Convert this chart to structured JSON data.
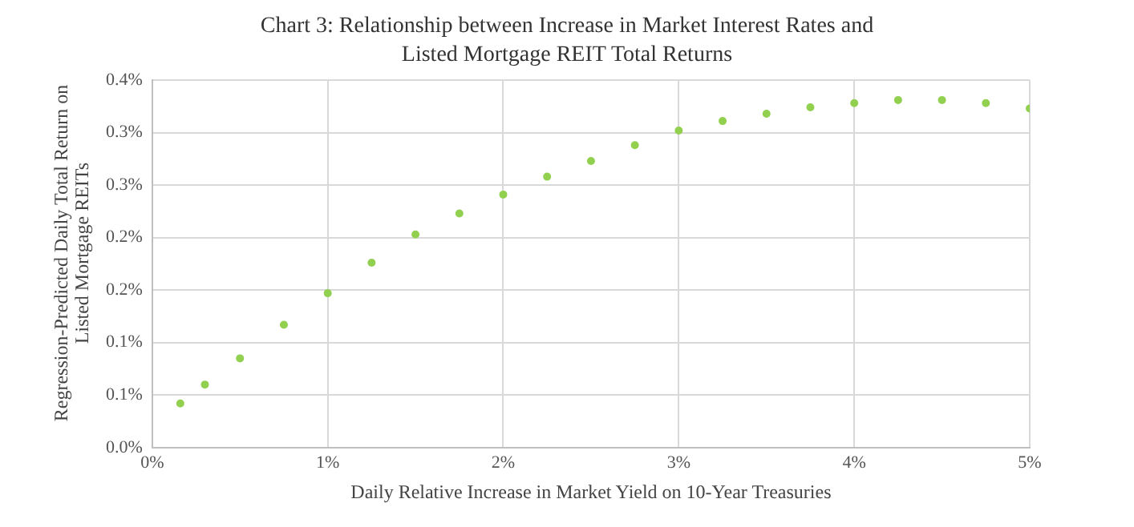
{
  "chart_data": {
    "type": "scatter",
    "title": "Chart 3: Relationship between Increase in Market Interest Rates and Listed Mortgage REIT Total Returns",
    "xlabel": "Daily Relative Increase in Market Yield on 10-Year Treasuries",
    "ylabel": "Regression-Predicted Daily Total Return on Listed Mortgage REITs",
    "x": [
      0.16,
      0.3,
      0.5,
      0.75,
      1,
      1.25,
      1.5,
      1.75,
      2,
      2.25,
      2.5,
      2.75,
      3,
      3.25,
      3.5,
      3.75,
      4,
      4.25,
      4.5,
      4.75,
      5
    ],
    "series": [
      {
        "color": "#92d050",
        "values": [
          0.042,
          0.06,
          0.085,
          0.117,
          0.147,
          0.176,
          0.203,
          0.223,
          0.241,
          0.258,
          0.273,
          0.288,
          0.302,
          0.311,
          0.318,
          0.324,
          0.328,
          0.331,
          0.331,
          0.328,
          0.323
        ]
      }
    ],
    "xlim": [
      0,
      5
    ],
    "xticks": [
      {
        "value": 0,
        "label": "0%"
      },
      {
        "value": 1,
        "label": "1%"
      },
      {
        "value": 2,
        "label": "2%"
      },
      {
        "value": 3,
        "label": "3%"
      },
      {
        "value": 4,
        "label": "4%"
      },
      {
        "value": 5,
        "label": "5%"
      }
    ],
    "ylim": [
      0,
      0.35
    ],
    "yticks": [
      {
        "value": 0,
        "label": "0.0%"
      },
      {
        "value": 0.05,
        "label": "0.1%"
      },
      {
        "value": 0.1,
        "label": "0.1%"
      },
      {
        "value": 0.15,
        "label": "0.2%"
      },
      {
        "value": 0.2,
        "label": "0.2%"
      },
      {
        "value": 0.25,
        "label": "0.3%"
      },
      {
        "value": 0.3,
        "label": "0.3%"
      },
      {
        "value": 0.35,
        "label": "0.4%"
      }
    ],
    "grid": true,
    "legend": false,
    "marker": "circle"
  }
}
